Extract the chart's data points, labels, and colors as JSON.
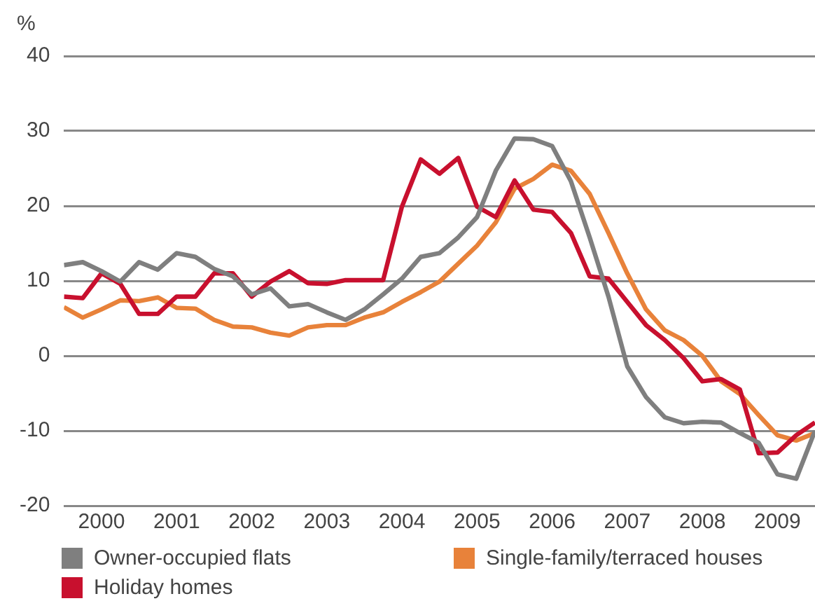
{
  "chart_data": {
    "type": "line",
    "ylabel": "%",
    "x": [
      2000,
      2000.25,
      2000.5,
      2000.75,
      2001,
      2001.25,
      2001.5,
      2001.75,
      2002,
      2002.25,
      2002.5,
      2002.75,
      2003,
      2003.25,
      2003.5,
      2003.75,
      2004,
      2004.25,
      2004.5,
      2004.75,
      2005,
      2005.25,
      2005.5,
      2005.75,
      2006,
      2006.25,
      2006.5,
      2006.75,
      2007,
      2007.25,
      2007.5,
      2007.75,
      2008,
      2008.25,
      2008.5,
      2008.75,
      2009,
      2009.25,
      2009.5,
      2009.75,
      2010
    ],
    "series": [
      {
        "name": "Owner-occupied flats",
        "color": "#7f7f7f",
        "values": [
          12.1,
          12.5,
          11.3,
          9.9,
          12.5,
          11.5,
          13.7,
          13.2,
          11.6,
          10.6,
          8.2,
          9,
          6.6,
          6.9,
          5.8,
          4.8,
          6.2,
          8.2,
          10.3,
          13.2,
          13.7,
          15.8,
          18.5,
          24.7,
          29,
          28.9,
          28,
          23.3,
          15.8,
          7.9,
          -1.4,
          -5.5,
          -8.2,
          -9,
          -8.8,
          -8.9,
          -10.3,
          -11.6,
          -15.8,
          -16.4,
          -10
        ]
      },
      {
        "name": "Holiday homes",
        "color": "#c8102e",
        "values": [
          7.9,
          7.7,
          11,
          9.6,
          5.6,
          5.6,
          7.9,
          7.9,
          11,
          11,
          7.9,
          9.9,
          11.3,
          9.7,
          9.6,
          10.1,
          10.1,
          10.1,
          19.9,
          26.2,
          24.3,
          26.4,
          19.9,
          18.5,
          23.4,
          19.5,
          19.2,
          16.4,
          10.6,
          10.3,
          7.2,
          4.1,
          2.1,
          -0.3,
          -3.4,
          -3.1,
          -4.5,
          -13,
          -12.9,
          -10.6,
          -8.9
        ]
      },
      {
        "name": "Single-family/terraced houses",
        "color": "#e8823a",
        "values": [
          6.5,
          5.1,
          6.2,
          7.4,
          7.3,
          7.8,
          6.4,
          6.3,
          4.8,
          3.9,
          3.8,
          3.1,
          2.7,
          3.8,
          4.1,
          4.1,
          5.1,
          5.8,
          7.2,
          8.5,
          9.9,
          12.3,
          14.7,
          17.8,
          22.3,
          23.6,
          25.5,
          24.7,
          21.6,
          16.4,
          11,
          6.2,
          3.4,
          2.1,
          0,
          -3.4,
          -5.1,
          -7.9,
          -10.6,
          -11.3,
          -10.3
        ]
      }
    ],
    "xlim": [
      2000,
      2010
    ],
    "xticks": [
      {
        "value": 2000.5,
        "label": "2000"
      },
      {
        "value": 2001.5,
        "label": "2001"
      },
      {
        "value": 2002.5,
        "label": "2002"
      },
      {
        "value": 2003.5,
        "label": "2003"
      },
      {
        "value": 2004.5,
        "label": "2004"
      },
      {
        "value": 2005.5,
        "label": "2005"
      },
      {
        "value": 2006.5,
        "label": "2006"
      },
      {
        "value": 2007.5,
        "label": "2007"
      },
      {
        "value": 2008.5,
        "label": "2008"
      },
      {
        "value": 2009.5,
        "label": "2009"
      }
    ],
    "ylim": [
      -20,
      40
    ],
    "yticks": [
      -20,
      -10,
      0,
      10,
      20,
      30,
      40
    ],
    "grid": "y",
    "legend": "bottom",
    "marker": "none",
    "line_style": "solid"
  }
}
